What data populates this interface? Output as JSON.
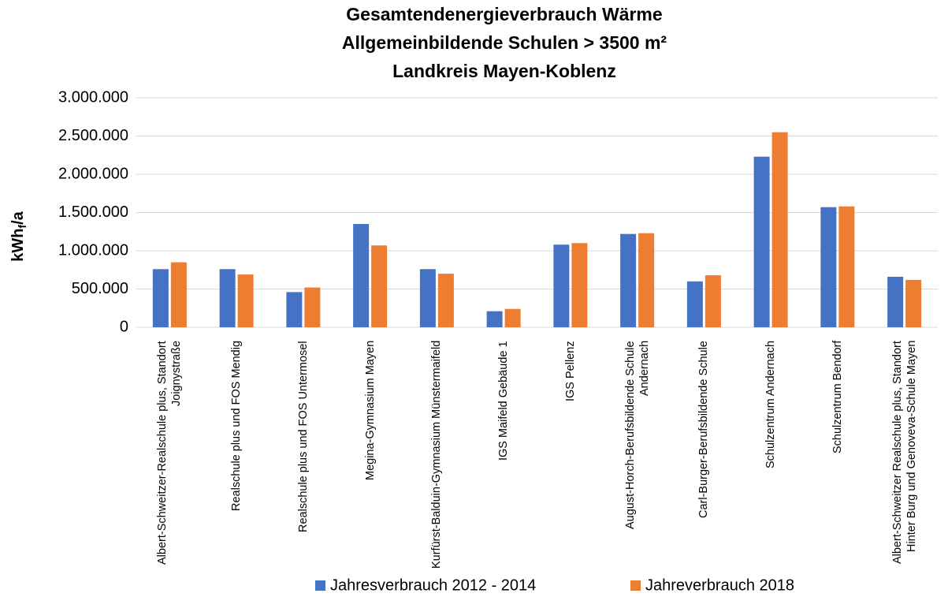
{
  "chart_data": {
    "type": "bar",
    "title": [
      "Gesamtendenergieverbrauch Wärme",
      "Allgemeinbildende Schulen > 3500 m²",
      "Landkreis Mayen-Koblenz"
    ],
    "y_label": [
      "kWh",
      "f",
      "/a"
    ],
    "categories": [
      "Albert-Schweitzer-Realschule plus, Standort Joignystraße",
      "Realschule plus und FOS Mendig",
      "Realschule plus und FOS Untermosel",
      "Megina-Gymnasium Mayen",
      "Kurfürst-Balduin-Gymnasium Münstermaifeld",
      "IGS Maifeld Gebäude 1",
      "IGS Pellenz",
      "August-Horch-Berufsbildende Schule Andernach",
      "Carl-Burger-Berufsbildende Schule",
      "Schulzentrum Andernach",
      "Schulzentrum Bendorf",
      "Albert-Schweitzer Realschule plus, Standort Hinter Burg und Genoveva-Schule Mayen"
    ],
    "series": [
      {
        "name": "Jahresverbrauch 2012 - 2014",
        "color": "#4472c4",
        "values": [
          760000,
          760000,
          460000,
          1350000,
          760000,
          210000,
          1080000,
          1220000,
          600000,
          2230000,
          1570000,
          660000
        ]
      },
      {
        "name": "Jahreverbrauch 2018",
        "color": "#ed7d31",
        "values": [
          850000,
          690000,
          520000,
          1070000,
          700000,
          240000,
          1100000,
          1230000,
          680000,
          2550000,
          1580000,
          620000
        ]
      }
    ],
    "ylim": [
      0,
      3000000
    ],
    "yticks": [
      0,
      {
        "value": 500000,
        "label": "500.000"
      },
      {
        "value": 1000000,
        "label": "1.000.000"
      },
      {
        "value": 1500000,
        "label": "1.500.000"
      },
      {
        "value": 2000000,
        "label": "2.000.000"
      },
      {
        "value": 2500000,
        "label": "2.500.000"
      },
      {
        "value": 3000000,
        "label": "3.000.000"
      }
    ],
    "grid": true,
    "legend": "bottom"
  }
}
